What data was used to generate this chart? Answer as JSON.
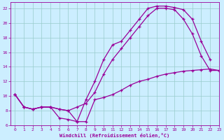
{
  "xlabel": "Windchill (Refroidissement éolien,°C)",
  "bg_color": "#cceeff",
  "line_color": "#990099",
  "grid_color": "#99cccc",
  "xlim": [
    -0.5,
    23
  ],
  "ylim": [
    6,
    22.8
  ],
  "yticks": [
    6,
    8,
    10,
    12,
    14,
    16,
    18,
    20,
    22
  ],
  "xticks": [
    0,
    1,
    2,
    3,
    4,
    5,
    6,
    7,
    8,
    9,
    10,
    11,
    12,
    13,
    14,
    15,
    16,
    17,
    18,
    19,
    20,
    21,
    22,
    23
  ],
  "curve1_x": [
    0,
    1,
    2,
    3,
    4,
    5,
    6,
    7,
    8,
    9,
    10,
    11,
    12,
    13,
    14,
    15,
    16,
    17,
    18,
    19,
    20,
    21,
    22
  ],
  "curve1_y": [
    10.2,
    8.5,
    8.2,
    8.5,
    8.5,
    7.0,
    6.8,
    6.5,
    9.5,
    12.0,
    15.0,
    17.0,
    17.5,
    19.0,
    20.5,
    22.0,
    22.3,
    22.3,
    22.1,
    21.8,
    20.5,
    17.5,
    15.0
  ],
  "curve2_x": [
    0,
    1,
    2,
    3,
    4,
    5,
    6,
    7,
    8,
    9,
    10,
    11,
    12,
    13,
    14,
    15,
    16,
    17,
    18,
    19,
    20,
    21,
    22,
    23
  ],
  "curve2_y": [
    10.2,
    8.5,
    8.2,
    8.5,
    8.5,
    8.2,
    8.0,
    8.5,
    9.0,
    10.5,
    13.0,
    15.0,
    16.5,
    18.0,
    19.5,
    21.0,
    22.0,
    22.0,
    21.8,
    20.5,
    18.5,
    15.5,
    13.5,
    13.5
  ],
  "curve3_x": [
    0,
    1,
    2,
    3,
    4,
    5,
    6,
    7,
    8,
    9,
    10,
    11,
    12,
    13,
    14,
    15,
    16,
    17,
    18,
    19,
    20,
    21,
    22,
    23
  ],
  "curve3_y": [
    10.2,
    8.5,
    8.2,
    8.5,
    8.5,
    8.2,
    8.0,
    6.5,
    6.5,
    9.5,
    9.8,
    10.2,
    10.8,
    11.5,
    12.0,
    12.3,
    12.7,
    13.0,
    13.2,
    13.4,
    13.5,
    13.6,
    13.7,
    13.5
  ]
}
